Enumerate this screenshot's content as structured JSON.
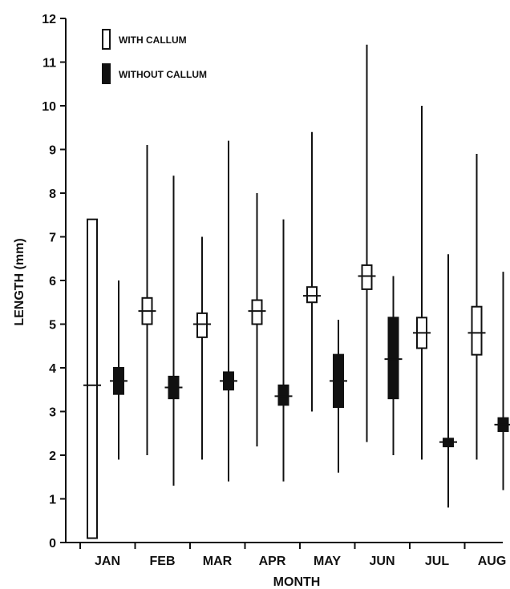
{
  "chart_data": {
    "type": "box",
    "xlabel": "MONTH",
    "ylabel": "LENGTH (mm)",
    "ylim": [
      0,
      12
    ],
    "yticks": [
      0,
      1,
      2,
      3,
      4,
      5,
      6,
      7,
      8,
      9,
      10,
      11,
      12
    ],
    "categories": [
      "JAN",
      "FEB",
      "MAR",
      "APR",
      "MAY",
      "JUN",
      "JUL",
      "AUG"
    ],
    "legend_placement": "top-left",
    "grid": false,
    "series": [
      {
        "name": "WITH CALLUM",
        "style": "open",
        "color": "#111111",
        "boxes": [
          {
            "category": "JAN",
            "min": 0.1,
            "q1": 0.1,
            "median": 3.6,
            "q3": 7.4,
            "max": 7.4
          },
          {
            "category": "FEB",
            "min": 2.0,
            "q1": 5.0,
            "median": 5.3,
            "q3": 5.6,
            "max": 9.1
          },
          {
            "category": "MAR",
            "min": 1.9,
            "q1": 4.7,
            "median": 5.0,
            "q3": 5.25,
            "max": 7.0
          },
          {
            "category": "APR",
            "min": 2.2,
            "q1": 5.0,
            "median": 5.3,
            "q3": 5.55,
            "max": 8.0
          },
          {
            "category": "MAY",
            "min": 3.0,
            "q1": 5.5,
            "median": 5.65,
            "q3": 5.85,
            "max": 9.4
          },
          {
            "category": "JUN",
            "min": 2.3,
            "q1": 5.8,
            "median": 6.1,
            "q3": 6.35,
            "max": 11.4
          },
          {
            "category": "JUL",
            "min": 1.9,
            "q1": 4.45,
            "median": 4.8,
            "q3": 5.15,
            "max": 10.0
          },
          {
            "category": "AUG",
            "min": 1.9,
            "q1": 4.3,
            "median": 4.8,
            "q3": 5.4,
            "max": 8.9
          }
        ]
      },
      {
        "name": "WITHOUT CALLUM",
        "style": "filled",
        "color": "#111111",
        "boxes": [
          {
            "category": "JAN",
            "min": 1.9,
            "q1": 3.4,
            "median": 3.7,
            "q3": 4.0,
            "max": 6.0
          },
          {
            "category": "FEB",
            "min": 1.3,
            "q1": 3.3,
            "median": 3.55,
            "q3": 3.8,
            "max": 8.4
          },
          {
            "category": "MAR",
            "min": 1.4,
            "q1": 3.5,
            "median": 3.7,
            "q3": 3.9,
            "max": 9.2
          },
          {
            "category": "APR",
            "min": 1.4,
            "q1": 3.15,
            "median": 3.35,
            "q3": 3.6,
            "max": 7.4
          },
          {
            "category": "MAY",
            "min": 1.6,
            "q1": 3.1,
            "median": 3.7,
            "q3": 4.3,
            "max": 5.1
          },
          {
            "category": "JUN",
            "min": 2.0,
            "q1": 3.3,
            "median": 4.2,
            "q3": 5.15,
            "max": 6.1
          },
          {
            "category": "JUL",
            "min": 0.8,
            "q1": 2.2,
            "median": 2.3,
            "q3": 2.38,
            "max": 6.6
          },
          {
            "category": "AUG",
            "min": 1.2,
            "q1": 2.55,
            "median": 2.7,
            "q3": 2.85,
            "max": 6.2
          }
        ]
      }
    ]
  }
}
